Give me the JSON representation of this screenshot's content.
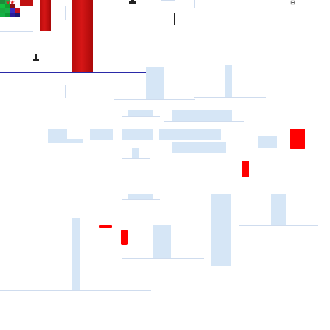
{
  "toolbar": {
    "stars": "★★",
    "thumbnail_icon": "image-thumbnail-icon",
    "corner_icon_glyph": "⊞"
  },
  "colors": {
    "panel": "#d6e6f6",
    "accent_red": "#ff0000",
    "dark_red": "#c01010",
    "divider_blue": "#2a2aa8"
  },
  "icons": [
    "pin-icon",
    "grid-icon",
    "star-icon"
  ]
}
